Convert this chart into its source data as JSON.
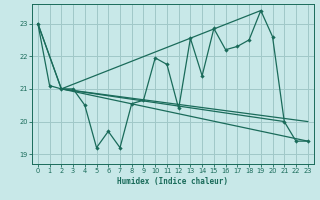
{
  "xlabel": "Humidex (Indice chaleur)",
  "bg_color": "#c8e8e8",
  "grid_color": "#a0c8c8",
  "line_color": "#1a6b5a",
  "xlim": [
    -0.5,
    23.5
  ],
  "ylim": [
    18.7,
    23.6
  ],
  "yticks": [
    19,
    20,
    21,
    22,
    23
  ],
  "xticks": [
    0,
    1,
    2,
    3,
    4,
    5,
    6,
    7,
    8,
    9,
    10,
    11,
    12,
    13,
    14,
    15,
    16,
    17,
    18,
    19,
    20,
    21,
    22,
    23
  ],
  "lines": [
    {
      "x": [
        0,
        1,
        2,
        3,
        4,
        5,
        6,
        7,
        8,
        9,
        10,
        11,
        12,
        13,
        14,
        15,
        16,
        17,
        18,
        19,
        20,
        21,
        22,
        23
      ],
      "y": [
        23.0,
        21.1,
        21.0,
        21.0,
        20.5,
        19.2,
        19.7,
        19.2,
        20.55,
        20.65,
        21.95,
        21.75,
        20.4,
        22.55,
        21.4,
        22.85,
        22.2,
        22.3,
        22.5,
        23.4,
        22.6,
        20.0,
        19.4,
        19.4
      ],
      "marker": true
    },
    {
      "x": [
        0,
        2,
        19
      ],
      "y": [
        23.0,
        21.0,
        23.4
      ],
      "marker": false
    },
    {
      "x": [
        2,
        23
      ],
      "y": [
        21.0,
        19.4
      ],
      "marker": false
    },
    {
      "x": [
        2,
        23
      ],
      "y": [
        21.0,
        20.0
      ],
      "marker": false
    },
    {
      "x": [
        0,
        2,
        21
      ],
      "y": [
        23.0,
        21.0,
        20.0
      ],
      "marker": false
    }
  ]
}
